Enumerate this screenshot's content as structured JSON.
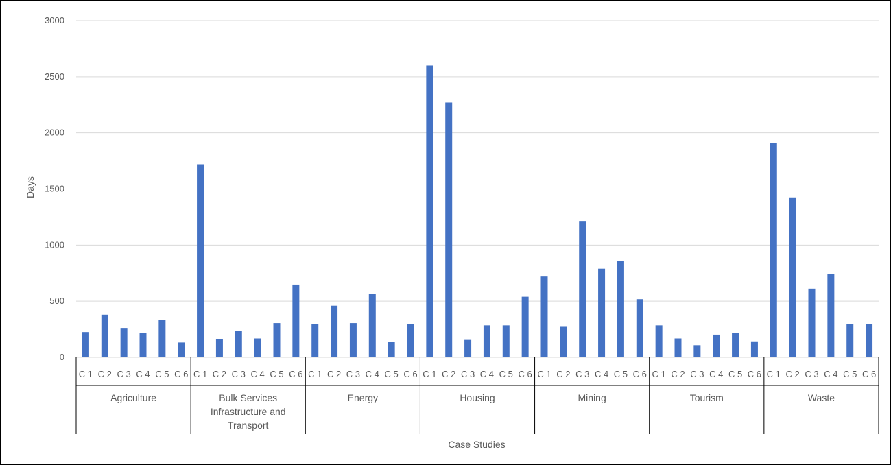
{
  "chart_data": {
    "type": "bar",
    "title": "",
    "xlabel": "Case Studies",
    "ylabel": "Days",
    "ylim": [
      0,
      3000
    ],
    "yticks": [
      0,
      500,
      1000,
      1500,
      2000,
      2500,
      3000
    ],
    "grid": true,
    "legend": "none",
    "bar_color": "#4472C4",
    "groups": [
      {
        "name": "Agriculture",
        "cases": [
          "C 1",
          "C 2",
          "C 3",
          "C 4",
          "C 5",
          "C 6"
        ],
        "values": [
          225,
          380,
          262,
          215,
          332,
          132
        ]
      },
      {
        "name": "Bulk Services Infrastructure and Transport",
        "label_lines": [
          "Bulk Services",
          "Infrastructure and",
          "Transport"
        ],
        "cases": [
          "C 1",
          "C 2",
          "C 3",
          "C 4",
          "C 5",
          "C 6"
        ],
        "values": [
          1720,
          165,
          238,
          168,
          305,
          648
        ]
      },
      {
        "name": "Energy",
        "cases": [
          "C 1",
          "C 2",
          "C 3",
          "C 4",
          "C 5",
          "C 6"
        ],
        "values": [
          295,
          460,
          305,
          565,
          140,
          295
        ]
      },
      {
        "name": "Housing",
        "cases": [
          "C 1",
          "C 2",
          "C 3",
          "C 4",
          "C 5",
          "C 6"
        ],
        "values": [
          2600,
          2270,
          155,
          285,
          285,
          540
        ]
      },
      {
        "name": "Mining",
        "cases": [
          "C 1",
          "C 2",
          "C 3",
          "C 4",
          "C 5",
          "C 6"
        ],
        "values": [
          720,
          272,
          1215,
          790,
          860,
          518
        ]
      },
      {
        "name": "Tourism",
        "cases": [
          "C 1",
          "C 2",
          "C 3",
          "C 4",
          "C 5",
          "C 6"
        ],
        "values": [
          285,
          168,
          108,
          202,
          215,
          142
        ]
      },
      {
        "name": "Waste",
        "cases": [
          "C 1",
          "C 2",
          "C 3",
          "C 4",
          "C 5",
          "C 6"
        ],
        "values": [
          1910,
          1425,
          612,
          740,
          295,
          295
        ]
      }
    ]
  }
}
